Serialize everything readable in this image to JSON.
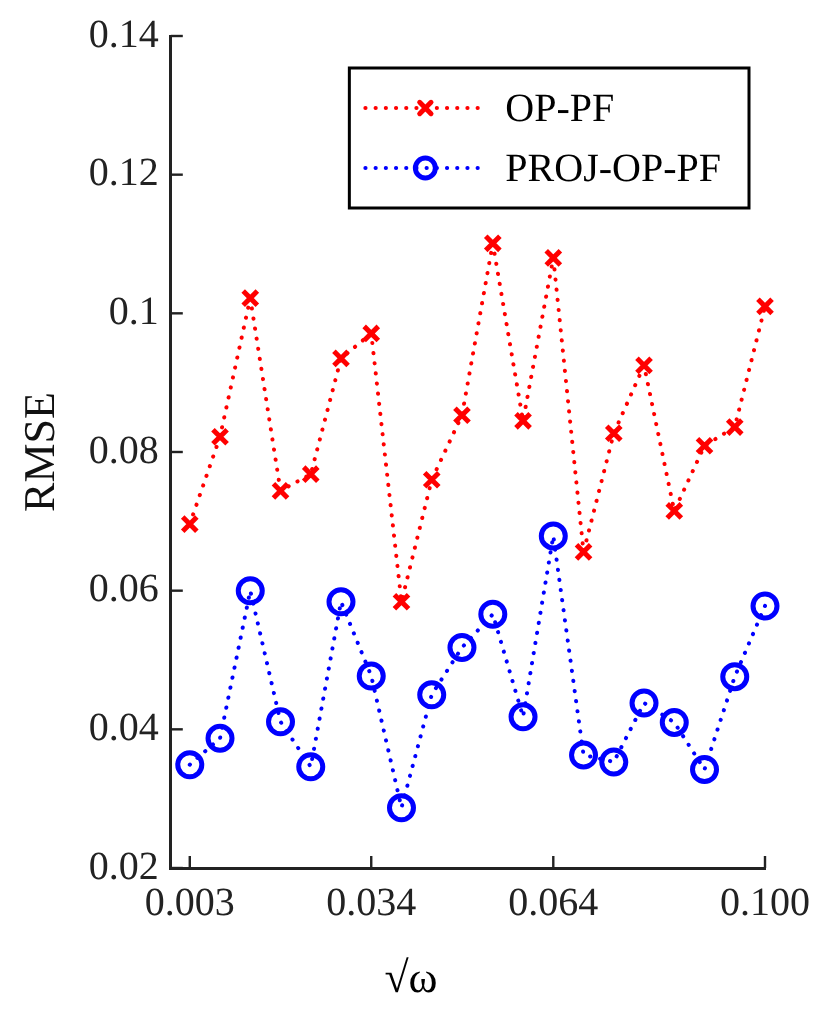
{
  "chart_data": {
    "type": "line",
    "xlabel": "√ω",
    "ylabel": "RMSE",
    "x": [
      0.003,
      0.0081,
      0.0132,
      0.0183,
      0.0234,
      0.0285,
      0.0336,
      0.0387,
      0.0438,
      0.0489,
      0.0541,
      0.0592,
      0.0643,
      0.0694,
      0.0745,
      0.0796,
      0.0847,
      0.0898,
      0.0949,
      0.1
    ],
    "xlim": [
      -0.0002,
      0.1
    ],
    "xticks": [
      {
        "value": 0.003,
        "label": "0.003"
      },
      {
        "value": 0.0336,
        "label": "0.034"
      },
      {
        "value": 0.0643,
        "label": "0.064"
      },
      {
        "value": 0.1,
        "label": "0.100"
      }
    ],
    "ylim": [
      0.02,
      0.14
    ],
    "yticks": [
      0.02,
      0.04,
      0.06,
      0.08,
      0.1,
      0.12,
      0.14
    ],
    "grid": false,
    "legend": "top right",
    "line_style": "dotted",
    "series": [
      {
        "name": "OP-PF",
        "color": "#ff0000",
        "marker": "cross",
        "values": [
          0.0696,
          0.0822,
          0.1022,
          0.0744,
          0.0768,
          0.0935,
          0.0971,
          0.0584,
          0.076,
          0.0853,
          0.1101,
          0.0845,
          0.108,
          0.0656,
          0.0827,
          0.0925,
          0.0715,
          0.0809,
          0.0836,
          0.101
        ]
      },
      {
        "name": "PROJ-OP-PF",
        "color": "#0000ff",
        "marker": "circle",
        "values": [
          0.0349,
          0.0387,
          0.06,
          0.0411,
          0.0346,
          0.0584,
          0.0477,
          0.0287,
          0.045,
          0.0518,
          0.0566,
          0.0418,
          0.0679,
          0.0363,
          0.0353,
          0.0438,
          0.041,
          0.0342,
          0.0476,
          0.0578
        ]
      }
    ]
  }
}
